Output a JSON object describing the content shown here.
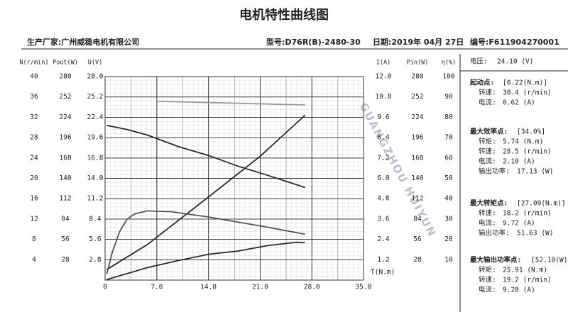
{
  "header": {
    "maker": "生产厂家:广州威稳电机有限公司",
    "model": "型号:D76R(B)-2480-30",
    "date": "日期:2019年 04月 27日",
    "serial": "编号:F611904270001"
  },
  "panel": {
    "voltage_label": "电压:",
    "voltage": "24.10 (V)",
    "sections": [
      {
        "title": "起动点:",
        "value": "[0.22(N.m)]",
        "rows": [
          {
            "label": "转速:",
            "value": "30.4 (r/min)"
          },
          {
            "label": "电流:",
            "value": "0.62 (A)"
          }
        ]
      },
      {
        "title": "最大效率点:",
        "value": "[34.0%]",
        "rows": [
          {
            "label": "转矩:",
            "value": "5.74 (N.m)"
          },
          {
            "label": "转速:",
            "value": "28.5 (r/min)"
          },
          {
            "label": "电流:",
            "value": "2.10 (A)"
          },
          {
            "label": "输出功率:",
            "value": "17.13 (W)"
          }
        ]
      },
      {
        "title": "最大转矩点:",
        "value": "[27.09(N.m)]",
        "rows": [
          {
            "label": "转速:",
            "value": "18.2 (r/min)"
          },
          {
            "label": "电流:",
            "value": "9.72 (A)"
          },
          {
            "label": "输出功率:",
            "value": "51.63 (W)"
          }
        ]
      },
      {
        "title": "最大输出功率点:",
        "value": "[52.10(W)]",
        "rows": [
          {
            "label": "转矩:",
            "value": "25.91 (N.m)"
          },
          {
            "label": "转速:",
            "value": "19.2 (r/min)"
          },
          {
            "label": "电流:",
            "value": "9.28 (A)"
          }
        ]
      }
    ]
  },
  "chart_data": {
    "type": "line",
    "title": "电机特性曲线图",
    "watermark": "GUANGZHOU HUIYUN",
    "xlabel": "T(N.m)",
    "xlim": [
      0,
      35
    ],
    "xticks": [
      0,
      {
        "value": 7,
        "label": "7.0"
      },
      {
        "value": 14,
        "label": "14.0"
      },
      {
        "value": 21,
        "label": "21.0"
      },
      {
        "value": 28,
        "label": "28.0"
      },
      {
        "value": 35,
        "label": "35.0"
      }
    ],
    "grid": true,
    "y_axes": [
      {
        "label": "N(r/min)",
        "side": "left",
        "lim": [
          0,
          40
        ],
        "ticks": [
          40,
          36,
          32,
          28,
          24,
          20,
          16,
          12,
          8,
          4
        ]
      },
      {
        "label": "Pout(W)",
        "side": "left",
        "lim": [
          0,
          280
        ],
        "ticks": [
          280,
          252,
          224,
          196,
          168,
          140,
          112,
          84,
          56,
          28
        ]
      },
      {
        "label": "U(V)",
        "side": "left",
        "lim": [
          0,
          28
        ],
        "ticks": [
          {
            "value": 28,
            "label": "28.0"
          },
          25.2,
          22.4,
          19.6,
          16.8,
          {
            "value": 14,
            "label": "14.0"
          },
          11.2,
          8.4,
          5.6,
          2.8
        ]
      },
      {
        "label": "I(A)",
        "side": "right",
        "lim": [
          0,
          12
        ],
        "ticks": [
          {
            "value": 12,
            "label": "12.0"
          },
          10.8,
          9.6,
          8.4,
          7.2,
          {
            "value": 6,
            "label": "6.0"
          },
          4.8,
          3.6,
          2.4,
          1.2
        ]
      },
      {
        "label": "Pin(W)",
        "side": "right",
        "lim": [
          0,
          280
        ],
        "ticks": [
          280,
          252,
          224,
          196,
          168,
          140,
          112,
          84,
          56,
          28
        ]
      },
      {
        "label": "η(%)",
        "side": "right",
        "lim": [
          0,
          100
        ],
        "ticks": [
          100,
          90,
          80,
          70,
          60,
          50,
          40,
          30,
          20,
          10
        ]
      }
    ],
    "series": [
      {
        "axis": 0,
        "color": "#2a2a2a",
        "x": [
          0.22,
          3,
          5.74,
          10,
          14,
          18,
          22,
          27.09
        ],
        "values": [
          30.4,
          29.6,
          28.5,
          26.2,
          24.5,
          22.4,
          20.6,
          18.2
        ]
      },
      {
        "axis": 3,
        "color": "#2a2a2a",
        "x": [
          0.22,
          5.74,
          14,
          21,
          27.09
        ],
        "values": [
          0.62,
          2.1,
          4.9,
          7.3,
          9.72
        ]
      },
      {
        "axis": 5,
        "color": "#555555",
        "x": [
          0.22,
          1,
          2,
          3,
          4,
          5.74,
          9,
          14,
          18,
          22,
          27.09
        ],
        "values": [
          3,
          14,
          24,
          30,
          32.5,
          34,
          33.6,
          31,
          28.5,
          26,
          22.5
        ]
      },
      {
        "axis": 1,
        "color": "#2a2a2a",
        "x": [
          0.22,
          5.74,
          10,
          14,
          18,
          22,
          25.91,
          27.09
        ],
        "values": [
          0.7,
          17.13,
          27,
          35.5,
          40,
          47.4,
          52.1,
          51.63
        ]
      },
      {
        "axis": 2,
        "color": "#999999",
        "x": [
          7,
          27.09
        ],
        "values": [
          24.6,
          24.1
        ]
      }
    ]
  }
}
